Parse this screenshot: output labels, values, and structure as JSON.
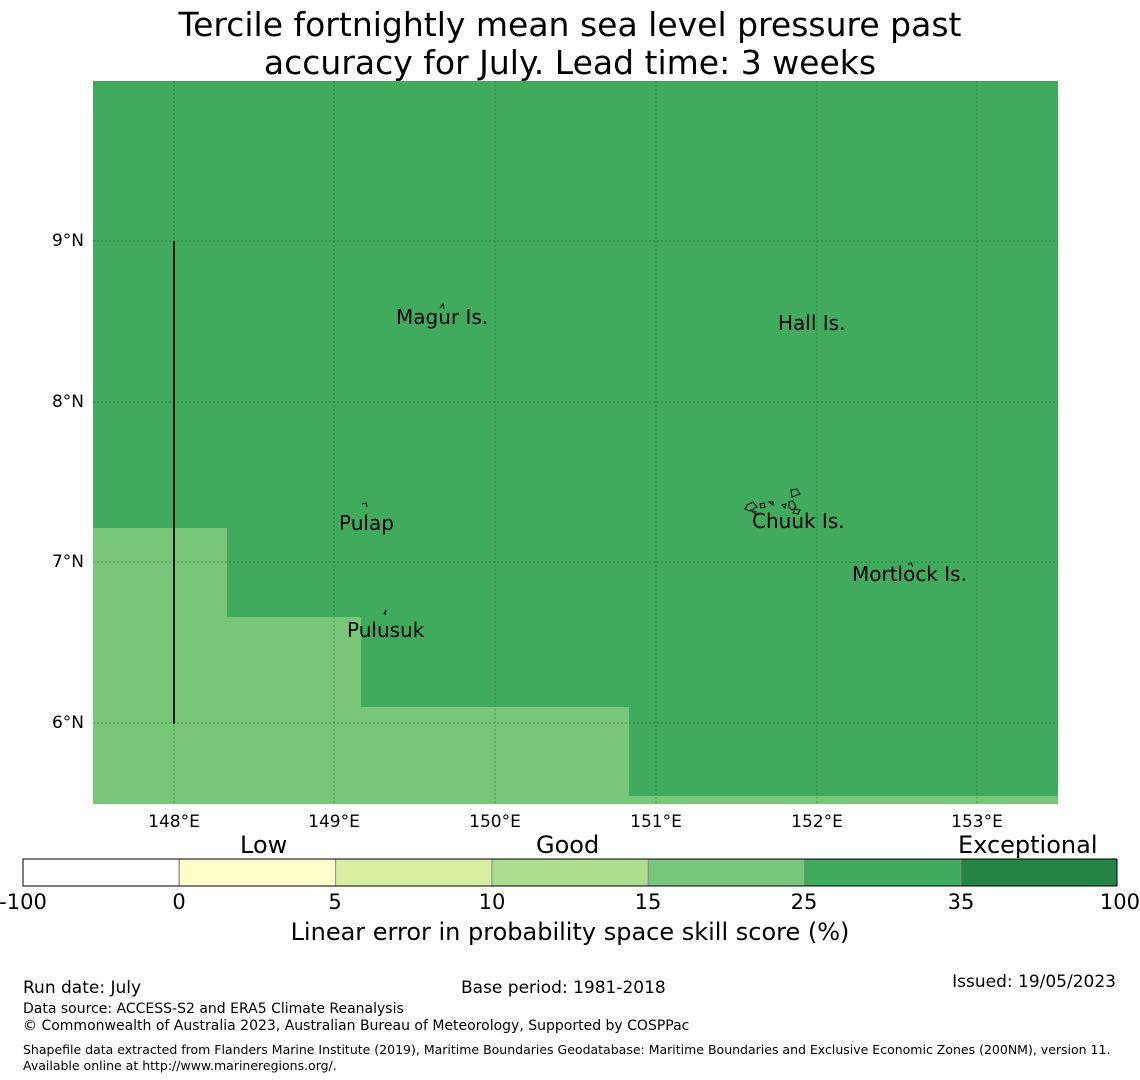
{
  "title_line1": "Tercile fortnightly mean sea level pressure past",
  "title_line2": "accuracy for July. Lead time: 3 weeks",
  "map": {
    "y_ticks": [
      "9°N",
      "8°N",
      "7°N",
      "6°N"
    ],
    "x_ticks": [
      "148°E",
      "149°E",
      "150°E",
      "151°E",
      "152°E",
      "153°E"
    ],
    "places": [
      "Magur Is.",
      "Hall Is.",
      "Pulap",
      "Chuuk Is.",
      "Mortlock Is.",
      "Pulusuk"
    ],
    "colors": {
      "skill_25_35": "#41ab5d",
      "skill_15_25": "#78c679"
    }
  },
  "legend": {
    "categories": [
      "Low",
      "Good",
      "Exceptional"
    ],
    "ticks": [
      "-100",
      "0",
      "5",
      "10",
      "15",
      "25",
      "35",
      "100"
    ],
    "colors": [
      "#ffffff",
      "#ffffcc",
      "#d9f0a3",
      "#addd8e",
      "#78c679",
      "#41ab5d",
      "#238443"
    ],
    "title": "Linear error in probability space skill score (%)"
  },
  "footer": {
    "run_date": "Run date: July",
    "base_period": "Base period: 1981-2018",
    "issued": "Issued: 19/05/2023",
    "data_source": "Data source: ACCESS-S2 and ERA5 Climate Reanalysis",
    "copyright": "© Commonwealth of Australia 2023, Australian Bureau of Meteorology, Supported by COSPPac",
    "shapefile": "Shapefile data extracted from Flanders Marine Institute (2019), Maritime Boundaries Geodatabase: Maritime Boundaries and Exclusive Economic Zones (200NM), version 11. Available online at http://www.marineregions.org/."
  }
}
